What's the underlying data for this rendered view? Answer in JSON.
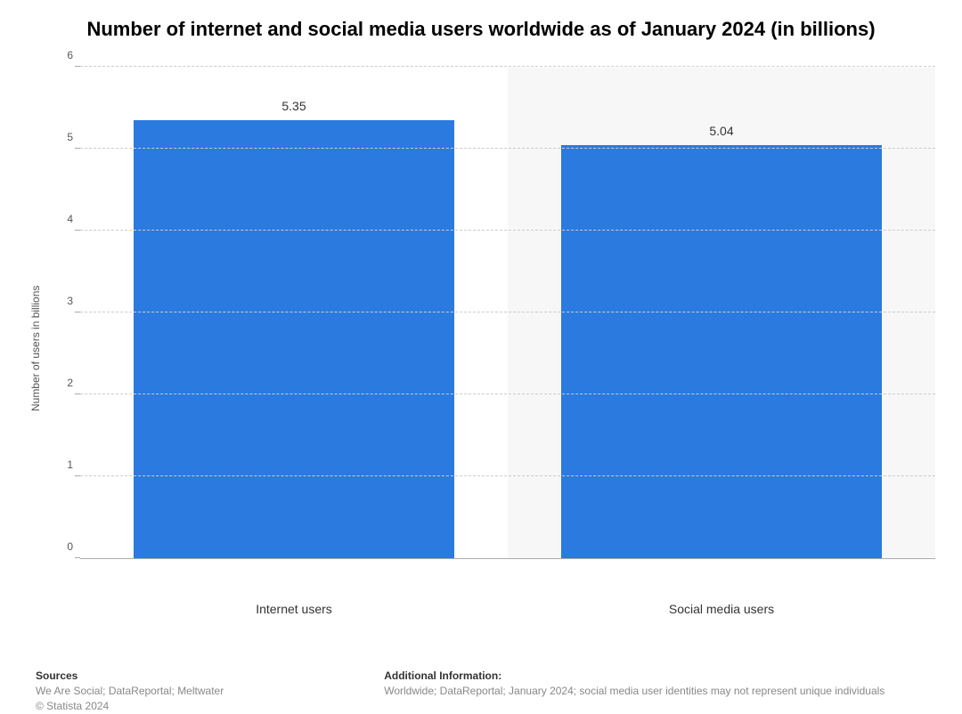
{
  "chart": {
    "type": "bar",
    "title": "Number of internet and social media users worldwide as of January 2024 (in billions)",
    "title_fontsize": 22,
    "title_color": "#000000",
    "ylabel": "Number of users in billions",
    "ylabel_fontsize": 12,
    "ylabel_color": "#555555",
    "ylim": [
      0,
      6
    ],
    "ytick_step": 1,
    "yticks": [
      0,
      1,
      2,
      3,
      4,
      5,
      6
    ],
    "categories": [
      "Internet users",
      "Social media users"
    ],
    "values": [
      5.35,
      5.04
    ],
    "bar_color": "#2a7adf",
    "bar_width_pct": 75,
    "background_color": "#ffffff",
    "alt_slot_background": "#f7f7f7",
    "grid_color": "#cccccc",
    "grid_style": "dashed",
    "axis_color": "#aaaaaa",
    "label_fontsize": 14,
    "value_label_fontsize": 14,
    "value_label_color": "#333333",
    "tick_fontsize": 12,
    "tick_color": "#555555"
  },
  "footer": {
    "sources_heading": "Sources",
    "sources_line1": "We Are Social; DataReportal; Meltwater",
    "sources_line2": "© Statista 2024",
    "info_heading": "Additional Information:",
    "info_text": "Worldwide; DataReportal; January 2024; social media user identities may not represent unique individuals",
    "heading_color": "#333333",
    "text_color": "#888888",
    "fontsize": 12
  }
}
